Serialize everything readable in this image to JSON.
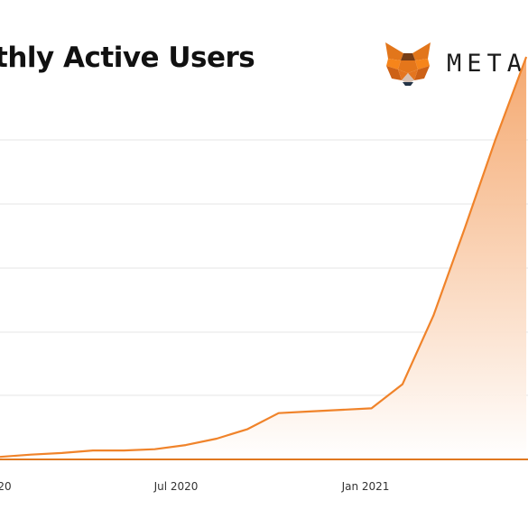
{
  "title": "thly Active Users",
  "brand": {
    "wordmark": "META",
    "logo_icon": "metamask-fox-icon",
    "colors": {
      "fox_light": "#f6851b",
      "fox_dark": "#e2761b",
      "fox_brown": "#763d16",
      "fox_face": "#d7c1b3"
    }
  },
  "colors": {
    "line": "#f0832a",
    "fill_top": "#f4a468",
    "fill_bottom": "#ffffff",
    "grid": "#e4e4e4",
    "baseline": "#e07820"
  },
  "chart_data": {
    "type": "area",
    "xlabel": "",
    "ylabel": "",
    "x_tick_labels": [
      "20",
      "Jul 2020",
      "Jan 2021"
    ],
    "ylim": [
      0,
      100
    ],
    "grid": true,
    "legend": "none",
    "y_scale_note": "y values in relative units (axis labels not visible)",
    "x": [
      "2020-01",
      "2020-02",
      "2020-03",
      "2020-04",
      "2020-05",
      "2020-06",
      "2020-07",
      "2020-08",
      "2020-09",
      "2020-10",
      "2020-11",
      "2020-12",
      "2021-01",
      "2021-02",
      "2021-03",
      "2021-04",
      "2021-05",
      "2021-06"
    ],
    "values": [
      0.8,
      1.5,
      2.0,
      2.8,
      2.8,
      3.2,
      4.5,
      6.5,
      9.5,
      14.5,
      15.0,
      15.5,
      16.0,
      23.5,
      45.0,
      72.0,
      100.0,
      126.0
    ]
  }
}
